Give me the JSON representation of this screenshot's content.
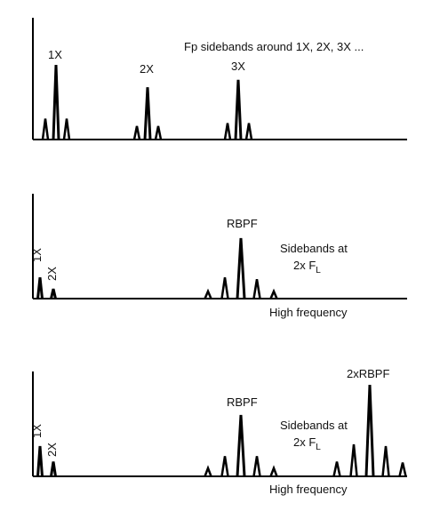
{
  "colors": {
    "ink": "#000000",
    "background": "#ffffff"
  },
  "panel1": {
    "annotation": "Fp  sidebands around 1X, 2X, 3X ...",
    "peaks": [
      {
        "label": "1X",
        "main": 1.0,
        "sidebands": [
          0.28,
          0.28
        ]
      },
      {
        "label": "2X",
        "main": 0.7,
        "sidebands": [
          0.18,
          0.18
        ]
      },
      {
        "label": "3X",
        "main": 0.8,
        "sidebands": [
          0.22,
          0.22
        ]
      }
    ]
  },
  "panel2": {
    "low_peaks": [
      {
        "label": "1X",
        "value": 0.35
      },
      {
        "label": "2X",
        "value": 0.16
      }
    ],
    "rbpf": {
      "label": "RBPF",
      "main": 1.0,
      "sidebands": [
        0.35,
        0.12
      ],
      "sidebands_right": [
        0.32,
        0.12
      ]
    },
    "sideband_text_line1": "Sidebands at",
    "sideband_text_line2": "2x F",
    "sideband_text_sub": "L",
    "xlabel": "High frequency"
  },
  "panel3": {
    "low_peaks": [
      {
        "label": "1X",
        "value": 0.33
      },
      {
        "label": "2X",
        "value": 0.16
      }
    ],
    "rbpf": {
      "label": "RBPF",
      "main": 0.67,
      "sidebands": [
        0.22,
        0.09
      ],
      "sidebands_right": [
        0.22,
        0.09
      ]
    },
    "rbpf2": {
      "label": "2xRBPF",
      "main": 1.0,
      "sidebands": [
        0.35,
        0.16
      ],
      "sidebands_right": [
        0.33,
        0.15
      ]
    },
    "sideband_text_line1": "Sidebands at",
    "sideband_text_line2": "2x F",
    "sideband_text_sub": "L",
    "xlabel": "High frequency"
  }
}
